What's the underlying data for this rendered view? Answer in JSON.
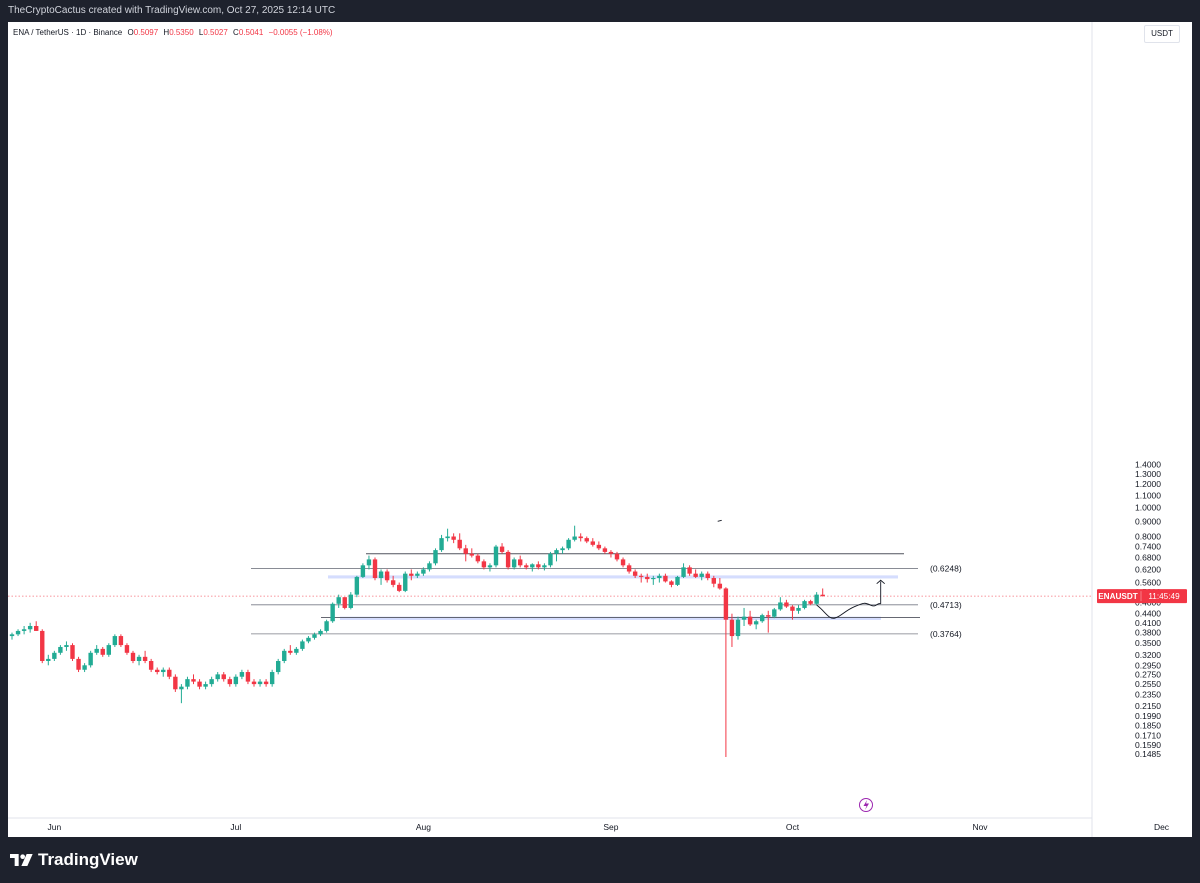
{
  "header": {
    "attribution": "TheCryptoCactus created with TradingView.com, Oct 27, 2025 12:14 UTC"
  },
  "legend": {
    "symbol": "ENA / TetherUS · 1D · Binance",
    "open_label": "O",
    "open": "0.5097",
    "high_label": "H",
    "high": "0.5350",
    "low_label": "L",
    "low": "0.5027",
    "close_label": "C",
    "close": "0.5041",
    "change": "−0.0055 (−1.08%)"
  },
  "currency": "USDT",
  "price_tag": {
    "symbol": "ENAUSDT",
    "countdown": "11:45:49",
    "price": 0.5041
  },
  "footer": {
    "brand": "TradingView"
  },
  "colors": {
    "up": "#22ab94",
    "down": "#f23645",
    "zone": "#c7d2fe",
    "line": "#787b86"
  },
  "chart_data": {
    "type": "candlestick",
    "y_scale": "log",
    "ylim": [
      0.145,
      1.5
    ],
    "y_ticks": [
      "1.4000",
      "1.3000",
      "1.2000",
      "1.1000",
      "1.0000",
      "0.9000",
      "0.8000",
      "0.7400",
      "0.6800",
      "0.6200",
      "0.5600",
      "0.5200",
      "0.4800",
      "0.4400",
      "0.4100",
      "0.3800",
      "0.3500",
      "0.3200",
      "0.2950",
      "0.2750",
      "0.2550",
      "0.2350",
      "0.2150",
      "0.1990",
      "0.1850",
      "0.1710",
      "0.1590",
      "0.1485"
    ],
    "x_ticks": [
      {
        "label": "Jun",
        "day": 0
      },
      {
        "label": "Jul",
        "day": 30
      },
      {
        "label": "Aug",
        "day": 61
      },
      {
        "label": "Sep",
        "day": 92
      },
      {
        "label": "Oct",
        "day": 122
      },
      {
        "label": "Nov",
        "day": 153
      },
      {
        "label": "Dec",
        "day": 183
      }
    ],
    "candles_start": "May 25",
    "candles": [
      [
        0.37,
        0.38,
        0.36,
        0.375
      ],
      [
        0.375,
        0.39,
        0.37,
        0.385
      ],
      [
        0.385,
        0.4,
        0.375,
        0.39
      ],
      [
        0.39,
        0.41,
        0.38,
        0.4
      ],
      [
        0.4,
        0.415,
        0.385,
        0.385
      ],
      [
        0.385,
        0.39,
        0.3,
        0.305
      ],
      [
        0.305,
        0.32,
        0.295,
        0.31
      ],
      [
        0.31,
        0.33,
        0.305,
        0.325
      ],
      [
        0.325,
        0.345,
        0.32,
        0.34
      ],
      [
        0.34,
        0.355,
        0.33,
        0.345
      ],
      [
        0.345,
        0.35,
        0.305,
        0.31
      ],
      [
        0.31,
        0.315,
        0.28,
        0.285
      ],
      [
        0.285,
        0.3,
        0.28,
        0.295
      ],
      [
        0.295,
        0.33,
        0.29,
        0.325
      ],
      [
        0.325,
        0.345,
        0.32,
        0.335
      ],
      [
        0.335,
        0.34,
        0.315,
        0.32
      ],
      [
        0.32,
        0.35,
        0.315,
        0.345
      ],
      [
        0.345,
        0.375,
        0.34,
        0.37
      ],
      [
        0.37,
        0.375,
        0.34,
        0.345
      ],
      [
        0.345,
        0.35,
        0.32,
        0.325
      ],
      [
        0.325,
        0.33,
        0.3,
        0.305
      ],
      [
        0.305,
        0.32,
        0.295,
        0.315
      ],
      [
        0.315,
        0.33,
        0.3,
        0.305
      ],
      [
        0.305,
        0.31,
        0.28,
        0.285
      ],
      [
        0.285,
        0.29,
        0.275,
        0.28
      ],
      [
        0.28,
        0.29,
        0.27,
        0.285
      ],
      [
        0.285,
        0.29,
        0.265,
        0.27
      ],
      [
        0.27,
        0.275,
        0.24,
        0.245
      ],
      [
        0.245,
        0.255,
        0.22,
        0.25
      ],
      [
        0.25,
        0.27,
        0.245,
        0.265
      ],
      [
        0.265,
        0.275,
        0.255,
        0.26
      ],
      [
        0.26,
        0.265,
        0.245,
        0.25
      ],
      [
        0.25,
        0.26,
        0.245,
        0.255
      ],
      [
        0.255,
        0.27,
        0.25,
        0.265
      ],
      [
        0.265,
        0.28,
        0.26,
        0.275
      ],
      [
        0.275,
        0.28,
        0.26,
        0.265
      ],
      [
        0.265,
        0.27,
        0.25,
        0.255
      ],
      [
        0.255,
        0.275,
        0.25,
        0.27
      ],
      [
        0.27,
        0.285,
        0.265,
        0.28
      ],
      [
        0.28,
        0.285,
        0.255,
        0.26
      ],
      [
        0.26,
        0.265,
        0.25,
        0.255
      ],
      [
        0.255,
        0.265,
        0.25,
        0.26
      ],
      [
        0.26,
        0.265,
        0.25,
        0.255
      ],
      [
        0.255,
        0.285,
        0.25,
        0.28
      ],
      [
        0.28,
        0.31,
        0.275,
        0.305
      ],
      [
        0.305,
        0.335,
        0.3,
        0.33
      ],
      [
        0.33,
        0.345,
        0.32,
        0.325
      ],
      [
        0.325,
        0.34,
        0.32,
        0.335
      ],
      [
        0.335,
        0.36,
        0.33,
        0.355
      ],
      [
        0.355,
        0.37,
        0.35,
        0.365
      ],
      [
        0.365,
        0.38,
        0.36,
        0.375
      ],
      [
        0.375,
        0.39,
        0.37,
        0.385
      ],
      [
        0.385,
        0.42,
        0.38,
        0.415
      ],
      [
        0.415,
        0.48,
        0.41,
        0.475
      ],
      [
        0.475,
        0.51,
        0.46,
        0.5
      ],
      [
        0.5,
        0.5,
        0.455,
        0.46
      ],
      [
        0.46,
        0.52,
        0.455,
        0.51
      ],
      [
        0.51,
        0.59,
        0.5,
        0.585
      ],
      [
        0.585,
        0.65,
        0.58,
        0.64
      ],
      [
        0.64,
        0.69,
        0.62,
        0.67
      ],
      [
        0.67,
        0.68,
        0.57,
        0.58
      ],
      [
        0.58,
        0.62,
        0.55,
        0.61
      ],
      [
        0.61,
        0.62,
        0.56,
        0.57
      ],
      [
        0.57,
        0.59,
        0.54,
        0.55
      ],
      [
        0.55,
        0.56,
        0.52,
        0.525
      ],
      [
        0.525,
        0.61,
        0.52,
        0.6
      ],
      [
        0.6,
        0.62,
        0.57,
        0.59
      ],
      [
        0.59,
        0.61,
        0.58,
        0.6
      ],
      [
        0.6,
        0.63,
        0.59,
        0.62
      ],
      [
        0.62,
        0.66,
        0.61,
        0.65
      ],
      [
        0.65,
        0.73,
        0.64,
        0.72
      ],
      [
        0.72,
        0.81,
        0.71,
        0.79
      ],
      [
        0.79,
        0.85,
        0.77,
        0.8
      ],
      [
        0.8,
        0.82,
        0.76,
        0.78
      ],
      [
        0.78,
        0.82,
        0.72,
        0.73
      ],
      [
        0.73,
        0.75,
        0.66,
        0.7
      ],
      [
        0.7,
        0.73,
        0.68,
        0.69
      ],
      [
        0.69,
        0.7,
        0.65,
        0.66
      ],
      [
        0.66,
        0.67,
        0.62,
        0.63
      ],
      [
        0.63,
        0.65,
        0.61,
        0.64
      ],
      [
        0.64,
        0.75,
        0.63,
        0.74
      ],
      [
        0.74,
        0.76,
        0.7,
        0.71
      ],
      [
        0.71,
        0.72,
        0.62,
        0.63
      ],
      [
        0.63,
        0.68,
        0.62,
        0.67
      ],
      [
        0.67,
        0.69,
        0.63,
        0.64
      ],
      [
        0.64,
        0.65,
        0.62,
        0.63
      ],
      [
        0.63,
        0.65,
        0.61,
        0.645
      ],
      [
        0.645,
        0.66,
        0.62,
        0.63
      ],
      [
        0.63,
        0.65,
        0.615,
        0.64
      ],
      [
        0.64,
        0.71,
        0.63,
        0.7
      ],
      [
        0.7,
        0.73,
        0.66,
        0.72
      ],
      [
        0.72,
        0.74,
        0.7,
        0.73
      ],
      [
        0.73,
        0.79,
        0.72,
        0.78
      ],
      [
        0.78,
        0.87,
        0.77,
        0.8
      ],
      [
        0.8,
        0.82,
        0.77,
        0.79
      ],
      [
        0.79,
        0.8,
        0.76,
        0.77
      ],
      [
        0.77,
        0.79,
        0.74,
        0.75
      ],
      [
        0.75,
        0.77,
        0.72,
        0.73
      ],
      [
        0.73,
        0.74,
        0.7,
        0.71
      ],
      [
        0.71,
        0.72,
        0.68,
        0.7
      ],
      [
        0.7,
        0.71,
        0.66,
        0.67
      ],
      [
        0.67,
        0.68,
        0.63,
        0.64
      ],
      [
        0.64,
        0.65,
        0.6,
        0.61
      ],
      [
        0.61,
        0.62,
        0.58,
        0.59
      ],
      [
        0.59,
        0.6,
        0.56,
        0.585
      ],
      [
        0.585,
        0.6,
        0.56,
        0.575
      ],
      [
        0.575,
        0.59,
        0.55,
        0.58
      ],
      [
        0.58,
        0.6,
        0.56,
        0.59
      ],
      [
        0.59,
        0.6,
        0.56,
        0.565
      ],
      [
        0.565,
        0.57,
        0.54,
        0.55
      ],
      [
        0.55,
        0.59,
        0.545,
        0.585
      ],
      [
        0.585,
        0.65,
        0.58,
        0.63
      ],
      [
        0.63,
        0.64,
        0.59,
        0.6
      ],
      [
        0.6,
        0.62,
        0.58,
        0.585
      ],
      [
        0.585,
        0.61,
        0.57,
        0.6
      ],
      [
        0.6,
        0.61,
        0.57,
        0.58
      ],
      [
        0.58,
        0.59,
        0.54,
        0.555
      ],
      [
        0.555,
        0.58,
        0.53,
        0.535
      ],
      [
        0.535,
        0.54,
        0.145,
        0.42
      ],
      [
        0.42,
        0.44,
        0.34,
        0.37
      ],
      [
        0.37,
        0.43,
        0.36,
        0.42
      ],
      [
        0.42,
        0.46,
        0.4,
        0.43
      ],
      [
        0.43,
        0.45,
        0.4,
        0.405
      ],
      [
        0.405,
        0.42,
        0.39,
        0.415
      ],
      [
        0.415,
        0.44,
        0.41,
        0.435
      ],
      [
        0.435,
        0.45,
        0.38,
        0.43
      ],
      [
        0.43,
        0.46,
        0.425,
        0.455
      ],
      [
        0.455,
        0.5,
        0.45,
        0.48
      ],
      [
        0.48,
        0.49,
        0.46,
        0.465
      ],
      [
        0.465,
        0.47,
        0.42,
        0.45
      ],
      [
        0.45,
        0.47,
        0.44,
        0.46
      ],
      [
        0.46,
        0.49,
        0.455,
        0.485
      ],
      [
        0.485,
        0.49,
        0.47,
        0.475
      ],
      [
        0.475,
        0.52,
        0.47,
        0.51
      ],
      [
        0.5097,
        0.535,
        0.5027,
        0.5041
      ]
    ],
    "levels": [
      {
        "label": "(0.6248)",
        "price": 0.6248
      },
      {
        "label": "(0.4713)",
        "price": 0.4713
      },
      {
        "label": "(0.3764)",
        "price": 0.3764
      }
    ],
    "unlabeled_levels": [
      0.7,
      0.4275
    ],
    "zones": [
      {
        "low": 0.578,
        "high": 0.592
      },
      {
        "low": 0.419,
        "high": 0.43
      }
    ]
  }
}
